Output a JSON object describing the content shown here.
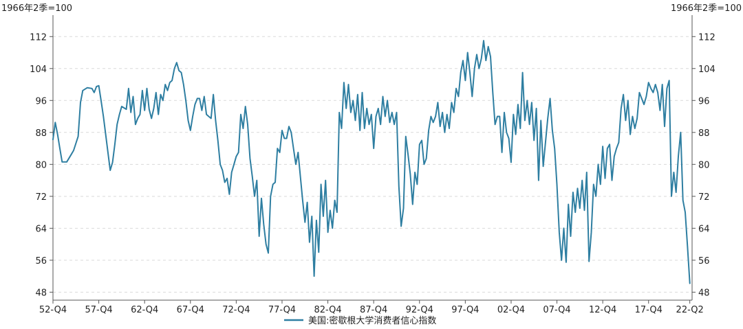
{
  "chart_data": {
    "type": "line",
    "y_unit_left": "1966年2季=100",
    "y_unit_right": "1966年2季=100",
    "ylim": [
      46,
      116
    ],
    "y_ticks": [
      48,
      56,
      64,
      72,
      80,
      88,
      96,
      104,
      112
    ],
    "x_ticks": [
      "52-Q4",
      "57-Q4",
      "62-Q4",
      "67-Q4",
      "72-Q4",
      "77-Q4",
      "82-Q4",
      "87-Q4",
      "92-Q4",
      "97-Q4",
      "02-Q4",
      "07-Q4",
      "12-Q4",
      "17-Q4",
      "22-Q2"
    ],
    "x_tick_pos": [
      1952.75,
      1957.75,
      1962.75,
      1967.75,
      1972.75,
      1977.75,
      1982.75,
      1987.75,
      1992.75,
      1997.75,
      2002.75,
      2007.75,
      2012.75,
      2017.75,
      2022.25
    ],
    "xlim": [
      1952.75,
      2022.5
    ],
    "grid": "horizontal-dashed",
    "legend_position": "bottom-center",
    "color": "#2e7ea1",
    "series": [
      {
        "name": "美国:密歇根大学消费者信心指数",
        "points": [
          [
            1952.75,
            86.2
          ],
          [
            1953.0,
            90.5
          ],
          [
            1953.25,
            87.5
          ],
          [
            1953.5,
            84.0
          ],
          [
            1953.75,
            80.6
          ],
          [
            1954.25,
            80.6
          ],
          [
            1954.75,
            82.5
          ],
          [
            1955.0,
            83.5
          ],
          [
            1955.5,
            87.0
          ],
          [
            1955.75,
            95.5
          ],
          [
            1956.0,
            98.5
          ],
          [
            1956.5,
            99.2
          ],
          [
            1957.0,
            99.0
          ],
          [
            1957.25,
            98.0
          ],
          [
            1957.5,
            99.5
          ],
          [
            1957.75,
            99.7
          ],
          [
            1958.0,
            96.0
          ],
          [
            1958.25,
            92.0
          ],
          [
            1958.75,
            83.0
          ],
          [
            1959.0,
            78.5
          ],
          [
            1959.25,
            80.5
          ],
          [
            1959.5,
            85.0
          ],
          [
            1959.75,
            90.0
          ],
          [
            1960.0,
            92.5
          ],
          [
            1960.25,
            94.5
          ],
          [
            1960.75,
            93.8
          ],
          [
            1961.0,
            99.0
          ],
          [
            1961.25,
            93.0
          ],
          [
            1961.5,
            97.0
          ],
          [
            1961.75,
            90.0
          ],
          [
            1962.0,
            91.5
          ],
          [
            1962.25,
            92.5
          ],
          [
            1962.5,
            98.5
          ],
          [
            1962.75,
            93.5
          ],
          [
            1963.0,
            99.0
          ],
          [
            1963.25,
            93.8
          ],
          [
            1963.5,
            91.5
          ],
          [
            1963.75,
            94.0
          ],
          [
            1964.0,
            98.0
          ],
          [
            1964.25,
            92.5
          ],
          [
            1964.5,
            97.5
          ],
          [
            1964.75,
            96.0
          ],
          [
            1965.0,
            100.0
          ],
          [
            1965.25,
            98.5
          ],
          [
            1965.5,
            100.5
          ],
          [
            1965.75,
            101.0
          ],
          [
            1966.0,
            104.0
          ],
          [
            1966.25,
            105.5
          ],
          [
            1966.5,
            103.5
          ],
          [
            1966.75,
            103.0
          ],
          [
            1967.0,
            100.0
          ],
          [
            1967.25,
            96.0
          ],
          [
            1967.5,
            91.0
          ],
          [
            1967.75,
            88.5
          ],
          [
            1968.0,
            92.0
          ],
          [
            1968.25,
            95.0
          ],
          [
            1968.5,
            96.5
          ],
          [
            1968.75,
            96.5
          ],
          [
            1969.0,
            93.5
          ],
          [
            1969.25,
            97.0
          ],
          [
            1969.5,
            92.5
          ],
          [
            1969.75,
            92.0
          ],
          [
            1970.0,
            91.5
          ],
          [
            1970.25,
            97.5
          ],
          [
            1970.5,
            91.0
          ],
          [
            1970.75,
            86.0
          ],
          [
            1971.0,
            80.0
          ],
          [
            1971.25,
            78.5
          ],
          [
            1971.5,
            75.5
          ],
          [
            1971.75,
            76.5
          ],
          [
            1972.0,
            72.5
          ],
          [
            1972.25,
            78.0
          ],
          [
            1972.5,
            80.0
          ],
          [
            1972.75,
            82.0
          ],
          [
            1973.0,
            83.0
          ],
          [
            1973.25,
            92.5
          ],
          [
            1973.5,
            89.0
          ],
          [
            1973.75,
            94.5
          ],
          [
            1974.0,
            90.0
          ],
          [
            1974.25,
            81.5
          ],
          [
            1974.5,
            77.0
          ],
          [
            1974.75,
            72.0
          ],
          [
            1975.0,
            76.0
          ],
          [
            1975.25,
            62.0
          ],
          [
            1975.5,
            71.5
          ],
          [
            1975.75,
            65.0
          ],
          [
            1976.0,
            60.0
          ],
          [
            1976.25,
            57.8
          ],
          [
            1976.5,
            72.0
          ],
          [
            1976.75,
            75.0
          ],
          [
            1977.0,
            75.5
          ],
          [
            1977.25,
            84.0
          ],
          [
            1977.5,
            83.0
          ],
          [
            1977.75,
            88.5
          ],
          [
            1978.0,
            86.5
          ],
          [
            1978.25,
            86.5
          ],
          [
            1978.5,
            89.5
          ],
          [
            1978.75,
            88.0
          ],
          [
            1979.0,
            84.0
          ],
          [
            1979.25,
            80.0
          ],
          [
            1979.5,
            83.0
          ],
          [
            1979.75,
            77.0
          ],
          [
            1980.0,
            71.0
          ],
          [
            1980.25,
            65.5
          ],
          [
            1980.5,
            70.5
          ],
          [
            1980.75,
            60.5
          ],
          [
            1981.0,
            67.0
          ],
          [
            1981.25,
            52.0
          ],
          [
            1981.5,
            66.0
          ],
          [
            1981.75,
            58.0
          ],
          [
            1982.0,
            75.0
          ],
          [
            1982.25,
            67.0
          ],
          [
            1982.5,
            76.0
          ],
          [
            1982.75,
            63.0
          ],
          [
            1983.0,
            68.5
          ],
          [
            1983.25,
            64.0
          ],
          [
            1983.5,
            71.0
          ],
          [
            1983.75,
            68.0
          ],
          [
            1984.0,
            93.0
          ],
          [
            1984.25,
            89.0
          ],
          [
            1984.5,
            100.5
          ],
          [
            1984.75,
            94.0
          ],
          [
            1985.0,
            100.0
          ],
          [
            1985.25,
            93.0
          ],
          [
            1985.5,
            96.0
          ],
          [
            1985.75,
            91.0
          ],
          [
            1986.0,
            97.5
          ],
          [
            1986.25,
            88.5
          ],
          [
            1986.5,
            98.0
          ],
          [
            1986.75,
            89.0
          ],
          [
            1987.0,
            94.0
          ],
          [
            1987.25,
            90.0
          ],
          [
            1987.5,
            92.5
          ],
          [
            1987.75,
            84.0
          ],
          [
            1988.0,
            92.0
          ],
          [
            1988.25,
            94.0
          ],
          [
            1988.5,
            90.0
          ],
          [
            1988.75,
            97.0
          ],
          [
            1989.0,
            92.0
          ],
          [
            1989.25,
            96.0
          ],
          [
            1989.5,
            90.5
          ],
          [
            1989.75,
            93.0
          ],
          [
            1990.0,
            90.0
          ],
          [
            1990.25,
            93.0
          ],
          [
            1990.5,
            74.5
          ],
          [
            1990.75,
            64.5
          ],
          [
            1991.0,
            69.0
          ],
          [
            1991.25,
            87.0
          ],
          [
            1991.5,
            82.5
          ],
          [
            1991.75,
            77.5
          ],
          [
            1992.0,
            70.0
          ],
          [
            1992.25,
            78.0
          ],
          [
            1992.5,
            75.0
          ],
          [
            1992.75,
            85.0
          ],
          [
            1993.0,
            86.0
          ],
          [
            1993.25,
            80.0
          ],
          [
            1993.5,
            81.5
          ],
          [
            1993.75,
            88.5
          ],
          [
            1994.0,
            92.0
          ],
          [
            1994.25,
            90.5
          ],
          [
            1994.5,
            92.0
          ],
          [
            1994.75,
            95.5
          ],
          [
            1995.0,
            89.5
          ],
          [
            1995.25,
            93.0
          ],
          [
            1995.5,
            88.0
          ],
          [
            1995.75,
            92.5
          ],
          [
            1996.0,
            89.0
          ],
          [
            1996.25,
            95.5
          ],
          [
            1996.5,
            93.0
          ],
          [
            1996.75,
            99.0
          ],
          [
            1997.0,
            97.0
          ],
          [
            1997.25,
            103.0
          ],
          [
            1997.5,
            106.0
          ],
          [
            1997.75,
            101.0
          ],
          [
            1998.0,
            108.0
          ],
          [
            1998.25,
            103.0
          ],
          [
            1998.5,
            97.0
          ],
          [
            1998.75,
            104.0
          ],
          [
            1999.0,
            107.5
          ],
          [
            1999.25,
            104.0
          ],
          [
            1999.5,
            106.5
          ],
          [
            1999.75,
            111.0
          ],
          [
            2000.0,
            106.0
          ],
          [
            2000.25,
            109.5
          ],
          [
            2000.5,
            107.0
          ],
          [
            2000.75,
            98.0
          ],
          [
            2001.0,
            90.0
          ],
          [
            2001.25,
            92.0
          ],
          [
            2001.5,
            92.0
          ],
          [
            2001.75,
            83.0
          ],
          [
            2002.0,
            93.0
          ],
          [
            2002.25,
            88.0
          ],
          [
            2002.5,
            86.5
          ],
          [
            2002.75,
            80.5
          ],
          [
            2003.0,
            92.5
          ],
          [
            2003.25,
            87.5
          ],
          [
            2003.5,
            95.0
          ],
          [
            2003.75,
            89.0
          ],
          [
            2004.0,
            103.0
          ],
          [
            2004.25,
            91.0
          ],
          [
            2004.5,
            96.0
          ],
          [
            2004.75,
            90.0
          ],
          [
            2005.0,
            95.5
          ],
          [
            2005.25,
            86.0
          ],
          [
            2005.5,
            94.0
          ],
          [
            2005.75,
            76.0
          ],
          [
            2006.0,
            91.0
          ],
          [
            2006.25,
            79.5
          ],
          [
            2006.5,
            85.5
          ],
          [
            2006.75,
            91.5
          ],
          [
            2007.0,
            96.5
          ],
          [
            2007.25,
            88.5
          ],
          [
            2007.5,
            84.0
          ],
          [
            2007.75,
            75.0
          ],
          [
            2008.0,
            63.0
          ],
          [
            2008.25,
            56.0
          ],
          [
            2008.5,
            64.0
          ],
          [
            2008.75,
            55.5
          ],
          [
            2009.0,
            70.0
          ],
          [
            2009.25,
            62.0
          ],
          [
            2009.5,
            73.0
          ],
          [
            2009.75,
            68.0
          ],
          [
            2010.0,
            74.0
          ],
          [
            2010.25,
            69.0
          ],
          [
            2010.5,
            76.0
          ],
          [
            2010.75,
            68.5
          ],
          [
            2011.0,
            78.0
          ],
          [
            2011.25,
            55.7
          ],
          [
            2011.5,
            63.0
          ],
          [
            2011.75,
            75.0
          ],
          [
            2012.0,
            72.0
          ],
          [
            2012.25,
            80.0
          ],
          [
            2012.5,
            75.0
          ],
          [
            2012.75,
            84.5
          ],
          [
            2013.0,
            76.5
          ],
          [
            2013.25,
            84.0
          ],
          [
            2013.5,
            85.0
          ],
          [
            2013.75,
            76.0
          ],
          [
            2014.0,
            82.0
          ],
          [
            2014.25,
            84.0
          ],
          [
            2014.5,
            85.5
          ],
          [
            2014.75,
            94.0
          ],
          [
            2015.0,
            97.5
          ],
          [
            2015.25,
            91.0
          ],
          [
            2015.5,
            96.0
          ],
          [
            2015.75,
            87.5
          ],
          [
            2016.0,
            92.0
          ],
          [
            2016.25,
            89.0
          ],
          [
            2016.5,
            91.5
          ],
          [
            2016.75,
            98.0
          ],
          [
            2017.0,
            96.5
          ],
          [
            2017.25,
            95.0
          ],
          [
            2017.5,
            97.0
          ],
          [
            2017.75,
            100.5
          ],
          [
            2018.0,
            99.0
          ],
          [
            2018.25,
            98.0
          ],
          [
            2018.5,
            100.0
          ],
          [
            2018.75,
            98.0
          ],
          [
            2019.0,
            93.5
          ],
          [
            2019.25,
            100.0
          ],
          [
            2019.5,
            89.5
          ],
          [
            2019.75,
            99.0
          ],
          [
            2020.0,
            101.0
          ],
          [
            2020.25,
            72.0
          ],
          [
            2020.5,
            78.0
          ],
          [
            2020.75,
            73.0
          ],
          [
            2021.0,
            82.0
          ],
          [
            2021.25,
            88.0
          ],
          [
            2021.5,
            71.0
          ],
          [
            2021.75,
            68.0
          ],
          [
            2022.0,
            59.5
          ],
          [
            2022.25,
            50.2
          ]
        ]
      }
    ]
  }
}
